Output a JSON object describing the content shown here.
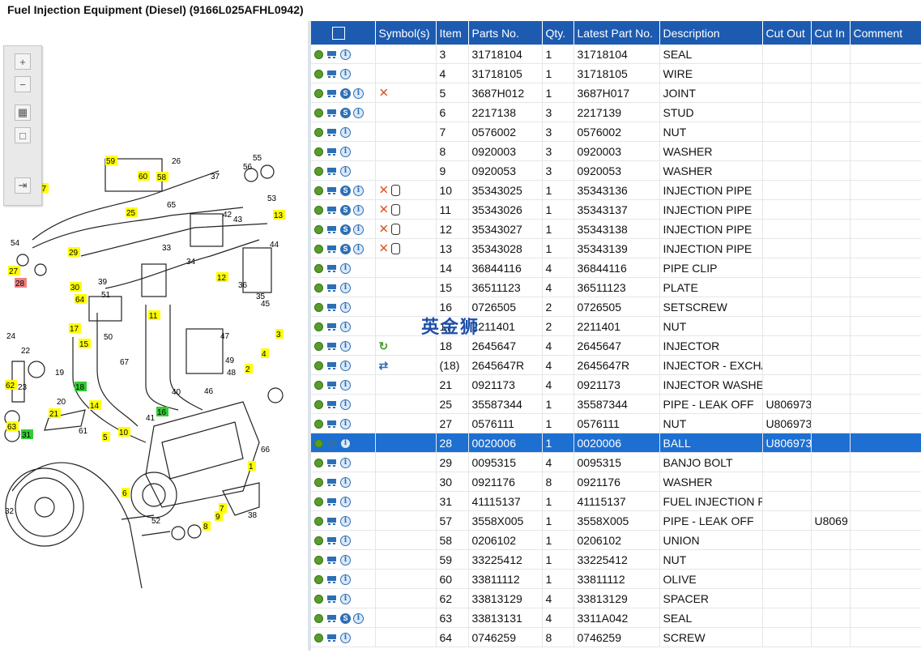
{
  "window": {
    "title": "Fuel Injection Equipment (Diesel) (9166L025AFHL0942)"
  },
  "watermark": "英金狮",
  "diagram": {
    "callouts": [
      "59",
      "60",
      "58",
      "57",
      "25",
      "13",
      "29",
      "27",
      "28",
      "30",
      "64",
      "12",
      "11",
      "17",
      "15",
      "14",
      "18",
      "16",
      "21",
      "10",
      "62",
      "63",
      "31",
      "5",
      "6",
      "7",
      "9",
      "8",
      "1",
      "2",
      "3",
      "4"
    ],
    "labels": [
      "26",
      "55",
      "56",
      "37",
      "53",
      "65",
      "42",
      "43",
      "44",
      "54",
      "33",
      "34",
      "39",
      "51",
      "36",
      "35",
      "45",
      "50",
      "47",
      "49",
      "48",
      "46",
      "24",
      "22",
      "23",
      "20",
      "19",
      "67",
      "41",
      "40",
      "61",
      "66",
      "32",
      "52",
      "38"
    ]
  },
  "table": {
    "headers": [
      "",
      "Symbol(s)",
      "Item",
      "Parts No.",
      "Qty.",
      "Latest Part No.",
      "Description",
      "Cut Out",
      "Cut In",
      "Comment"
    ],
    "rows": [
      {
        "icons": "gci",
        "sym": "",
        "item": "3",
        "part": "31718104",
        "qty": "1",
        "latest": "31718104",
        "desc": "SEAL",
        "out": "",
        "in": "",
        "sel": false
      },
      {
        "icons": "gci",
        "sym": "",
        "item": "4",
        "part": "31718105",
        "qty": "1",
        "latest": "31718105",
        "desc": "WIRE",
        "out": "",
        "in": "",
        "sel": false
      },
      {
        "icons": "gcsi",
        "sym": "x",
        "item": "5",
        "part": "3687H012",
        "qty": "1",
        "latest": "3687H017",
        "desc": "JOINT",
        "out": "",
        "in": "",
        "sel": false
      },
      {
        "icons": "gcsi",
        "sym": "",
        "item": "6",
        "part": "2217138",
        "qty": "3",
        "latest": "2217139",
        "desc": "STUD",
        "out": "",
        "in": "",
        "sel": false
      },
      {
        "icons": "gci",
        "sym": "",
        "item": "7",
        "part": "0576002",
        "qty": "3",
        "latest": "0576002",
        "desc": "NUT",
        "out": "",
        "in": "",
        "sel": false
      },
      {
        "icons": "gci",
        "sym": "",
        "item": "8",
        "part": "0920003",
        "qty": "3",
        "latest": "0920003",
        "desc": "WASHER",
        "out": "",
        "in": "",
        "sel": false
      },
      {
        "icons": "gci",
        "sym": "",
        "item": "9",
        "part": "0920053",
        "qty": "3",
        "latest": "0920053",
        "desc": "WASHER",
        "out": "",
        "in": "",
        "sel": false
      },
      {
        "icons": "gcsi",
        "sym": "xc",
        "item": "10",
        "part": "35343025",
        "qty": "1",
        "latest": "35343136",
        "desc": "INJECTION PIPE",
        "out": "",
        "in": "",
        "sel": false
      },
      {
        "icons": "gcsi",
        "sym": "xc",
        "item": "11",
        "part": "35343026",
        "qty": "1",
        "latest": "35343137",
        "desc": "INJECTION PIPE",
        "out": "",
        "in": "",
        "sel": false
      },
      {
        "icons": "gcsi",
        "sym": "xc",
        "item": "12",
        "part": "35343027",
        "qty": "1",
        "latest": "35343138",
        "desc": "INJECTION PIPE",
        "out": "",
        "in": "",
        "sel": false
      },
      {
        "icons": "gcsi",
        "sym": "xc",
        "item": "13",
        "part": "35343028",
        "qty": "1",
        "latest": "35343139",
        "desc": "INJECTION PIPE",
        "out": "",
        "in": "",
        "sel": false
      },
      {
        "icons": "gci",
        "sym": "",
        "item": "14",
        "part": "36844116",
        "qty": "4",
        "latest": "36844116",
        "desc": "PIPE CLIP",
        "out": "",
        "in": "",
        "sel": false
      },
      {
        "icons": "gci",
        "sym": "",
        "item": "15",
        "part": "36511123",
        "qty": "4",
        "latest": "36511123",
        "desc": "PLATE",
        "out": "",
        "in": "",
        "sel": false
      },
      {
        "icons": "gci",
        "sym": "",
        "item": "16",
        "part": "0726505",
        "qty": "2",
        "latest": "0726505",
        "desc": "SETSCREW",
        "out": "",
        "in": "",
        "sel": false
      },
      {
        "icons": "gci",
        "sym": "",
        "item": "17",
        "part": "2211401",
        "qty": "2",
        "latest": "2211401",
        "desc": "NUT",
        "out": "",
        "in": "",
        "sel": false
      },
      {
        "icons": "gci",
        "sym": "r",
        "item": "18",
        "part": "2645647",
        "qty": "4",
        "latest": "2645647",
        "desc": "INJECTOR",
        "out": "",
        "in": "",
        "sel": false
      },
      {
        "icons": "gci",
        "sym": "s",
        "item": "(18)",
        "part": "2645647R",
        "qty": "4",
        "latest": "2645647R",
        "desc": "INJECTOR - EXCHA",
        "out": "",
        "in": "",
        "sel": false
      },
      {
        "icons": "gci",
        "sym": "",
        "item": "21",
        "part": "0921173",
        "qty": "4",
        "latest": "0921173",
        "desc": "INJECTOR WASHEI",
        "out": "",
        "in": "",
        "sel": false
      },
      {
        "icons": "gci",
        "sym": "",
        "item": "25",
        "part": "35587344",
        "qty": "1",
        "latest": "35587344",
        "desc": "PIPE - LEAK OFF",
        "out": "U806973",
        "in": "",
        "sel": false
      },
      {
        "icons": "gci",
        "sym": "",
        "item": "27",
        "part": "0576111",
        "qty": "1",
        "latest": "0576111",
        "desc": "NUT",
        "out": "U806973",
        "in": "",
        "sel": false
      },
      {
        "icons": "gci",
        "sym": "",
        "item": "28",
        "part": "0020006",
        "qty": "1",
        "latest": "0020006",
        "desc": "BALL",
        "out": "U806973",
        "in": "",
        "sel": true
      },
      {
        "icons": "gci",
        "sym": "",
        "item": "29",
        "part": "0095315",
        "qty": "4",
        "latest": "0095315",
        "desc": "BANJO BOLT",
        "out": "",
        "in": "",
        "sel": false
      },
      {
        "icons": "gci",
        "sym": "",
        "item": "30",
        "part": "0921176",
        "qty": "8",
        "latest": "0921176",
        "desc": "WASHER",
        "out": "",
        "in": "",
        "sel": false
      },
      {
        "icons": "gci",
        "sym": "",
        "item": "31",
        "part": "41115137",
        "qty": "1",
        "latest": "41115137",
        "desc": "FUEL INJECTION PU",
        "out": "",
        "in": "",
        "sel": false
      },
      {
        "icons": "gci",
        "sym": "",
        "item": "57",
        "part": "3558X005",
        "qty": "1",
        "latest": "3558X005",
        "desc": "PIPE - LEAK OFF",
        "out": "",
        "in": "U8069",
        "sel": false
      },
      {
        "icons": "gci",
        "sym": "",
        "item": "58",
        "part": "0206102",
        "qty": "1",
        "latest": "0206102",
        "desc": "UNION",
        "out": "",
        "in": "",
        "sel": false
      },
      {
        "icons": "gci",
        "sym": "",
        "item": "59",
        "part": "33225412",
        "qty": "1",
        "latest": "33225412",
        "desc": "NUT",
        "out": "",
        "in": "",
        "sel": false
      },
      {
        "icons": "gci",
        "sym": "",
        "item": "60",
        "part": "33811112",
        "qty": "1",
        "latest": "33811112",
        "desc": "OLIVE",
        "out": "",
        "in": "",
        "sel": false
      },
      {
        "icons": "gci",
        "sym": "",
        "item": "62",
        "part": "33813129",
        "qty": "4",
        "latest": "33813129",
        "desc": "SPACER",
        "out": "",
        "in": "",
        "sel": false
      },
      {
        "icons": "gcsi",
        "sym": "",
        "item": "63",
        "part": "33813131",
        "qty": "4",
        "latest": "3311A042",
        "desc": "SEAL",
        "out": "",
        "in": "",
        "sel": false
      },
      {
        "icons": "gci",
        "sym": "",
        "item": "64",
        "part": "0746259",
        "qty": "8",
        "latest": "0746259",
        "desc": "SCREW",
        "out": "",
        "in": "",
        "sel": false
      }
    ]
  },
  "colors": {
    "header_bg": "#1d5bb1",
    "selected_row": "#1d6fd1",
    "callout_yellow": "#ffff00",
    "callout_green": "#33cc33",
    "callout_red": "#f08080"
  }
}
